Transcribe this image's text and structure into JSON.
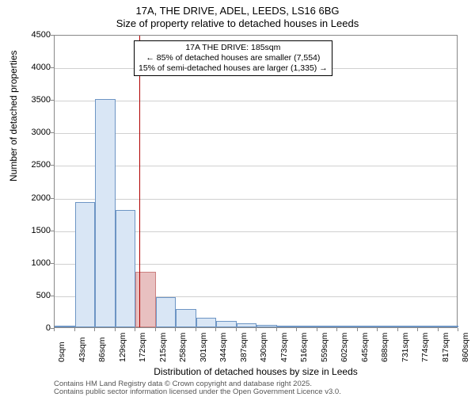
{
  "chart": {
    "type": "histogram",
    "title_line1": "17A, THE DRIVE, ADEL, LEEDS, LS16 6BG",
    "title_line2": "Size of property relative to detached houses in Leeds",
    "title_fontsize": 13,
    "y_axis_title": "Number of detached properties",
    "x_axis_title": "Distribution of detached houses by size in Leeds",
    "axis_title_fontsize": 12,
    "background_color": "#ffffff",
    "plot_border_color": "#888888",
    "grid_color": "#d0d0d0",
    "ylim": [
      0,
      4500
    ],
    "yticks": [
      0,
      500,
      1000,
      1500,
      2000,
      2500,
      3000,
      3500,
      4000,
      4500
    ],
    "ytick_fontsize": 11,
    "xticks": [
      "0sqm",
      "43sqm",
      "86sqm",
      "129sqm",
      "172sqm",
      "215sqm",
      "258sqm",
      "301sqm",
      "344sqm",
      "387sqm",
      "430sqm",
      "473sqm",
      "516sqm",
      "559sqm",
      "602sqm",
      "645sqm",
      "688sqm",
      "731sqm",
      "774sqm",
      "817sqm",
      "860sqm"
    ],
    "xtick_fontsize": 10.5,
    "bars": {
      "values": [
        0,
        1920,
        3500,
        1800,
        850,
        460,
        280,
        150,
        100,
        60,
        40,
        25,
        15,
        10,
        5,
        3,
        2,
        2,
        1,
        1
      ],
      "normal_fill": "#d9e6f5",
      "normal_stroke": "#6d95c4",
      "highlight_fill": "#e8c0c0",
      "highlight_stroke": "#cc8080",
      "highlight_index": 4,
      "bar_width_ratio": 1.0
    },
    "reference_line": {
      "x_sqm": 185,
      "x_range_sqm": 880,
      "color": "#b00000",
      "width": 1
    },
    "annotation": {
      "line1": "17A THE DRIVE: 185sqm",
      "line2": "← 85% of detached houses are smaller (7,554)",
      "line3": "15% of semi-detached houses are larger (1,335) →",
      "border_color": "#000000",
      "background_color": "#ffffff",
      "fontsize": 10.5
    },
    "attribution": {
      "line1": "Contains HM Land Registry data © Crown copyright and database right 2025.",
      "line2": "Contains public sector information licensed under the Open Government Licence v3.0.",
      "fontsize": 9.5,
      "color": "#555555"
    }
  }
}
